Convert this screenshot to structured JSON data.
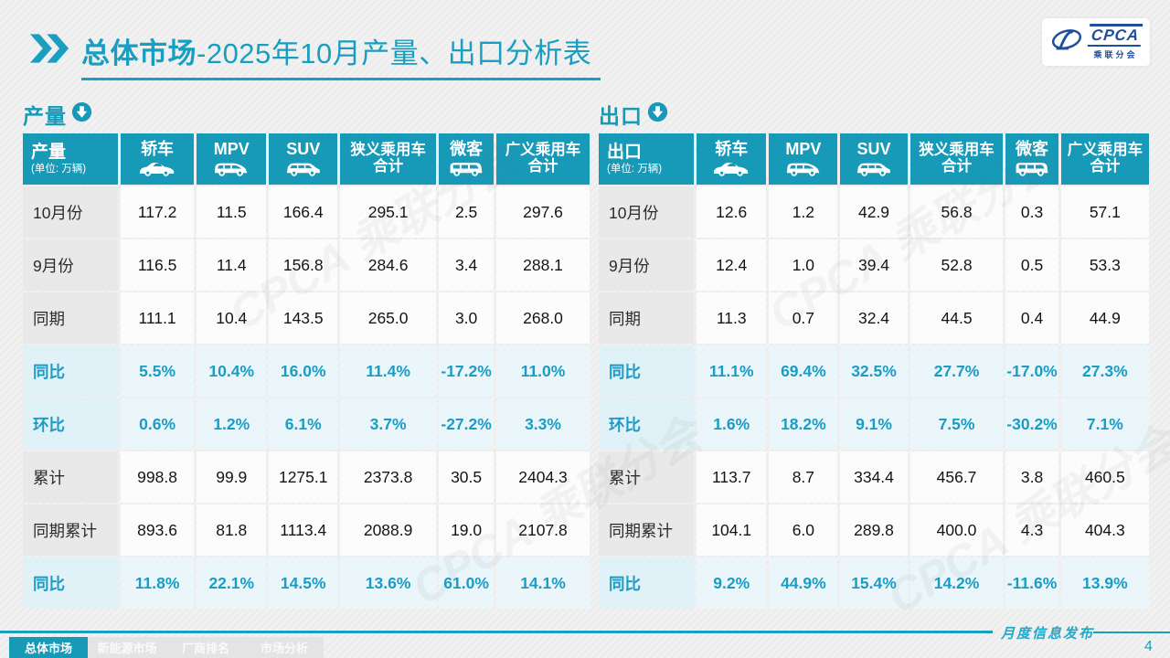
{
  "title": {
    "bold": "总体市场",
    "rest": "-2025年10月产量、出口分析表"
  },
  "logo": {
    "name": "CPCA",
    "caption": "乘联分会",
    "brand_color": "#1F4E9C"
  },
  "accent_color": "#1799B8",
  "watermark": "CPCA 乘联分会",
  "columns": [
    {
      "label": "轿车",
      "icon": "sedan-icon"
    },
    {
      "label": "MPV",
      "icon": "mpv-icon"
    },
    {
      "label": "SUV",
      "icon": "suv-icon"
    },
    {
      "label": "狭义乘用车合计",
      "lines": [
        "狭义乘用车",
        "合计"
      ]
    },
    {
      "label": "微客",
      "icon": "microvan-icon"
    },
    {
      "label": "广义乘用车合计",
      "lines": [
        "广义乘用车",
        "合计"
      ]
    }
  ],
  "tables": [
    {
      "id": "production",
      "section_label": "产量",
      "header_label": "产量",
      "unit": "(单位: 万辆)",
      "rows": [
        {
          "label": "10月份",
          "type": "normal",
          "values": [
            "117.2",
            "11.5",
            "166.4",
            "295.1",
            "2.5",
            "297.6"
          ]
        },
        {
          "label": "9月份",
          "type": "normal",
          "values": [
            "116.5",
            "11.4",
            "156.8",
            "284.6",
            "3.4",
            "288.1"
          ]
        },
        {
          "label": "同期",
          "type": "normal",
          "values": [
            "111.1",
            "10.4",
            "143.5",
            "265.0",
            "3.0",
            "268.0"
          ]
        },
        {
          "label": "同比",
          "type": "percent",
          "values": [
            "5.5%",
            "10.4%",
            "16.0%",
            "11.4%",
            "-17.2%",
            "11.0%"
          ]
        },
        {
          "label": "环比",
          "type": "percent",
          "values": [
            "0.6%",
            "1.2%",
            "6.1%",
            "3.7%",
            "-27.2%",
            "3.3%"
          ]
        },
        {
          "label": "累计",
          "type": "normal",
          "values": [
            "998.8",
            "99.9",
            "1275.1",
            "2373.8",
            "30.5",
            "2404.3"
          ]
        },
        {
          "label": "同期累计",
          "type": "normal",
          "values": [
            "893.6",
            "81.8",
            "1113.4",
            "2088.9",
            "19.0",
            "2107.8"
          ]
        },
        {
          "label": "同比",
          "type": "percent",
          "values": [
            "11.8%",
            "22.1%",
            "14.5%",
            "13.6%",
            "61.0%",
            "14.1%"
          ]
        }
      ]
    },
    {
      "id": "export",
      "section_label": "出口",
      "header_label": "出口",
      "unit": "(单位: 万辆)",
      "rows": [
        {
          "label": "10月份",
          "type": "normal",
          "values": [
            "12.6",
            "1.2",
            "42.9",
            "56.8",
            "0.3",
            "57.1"
          ]
        },
        {
          "label": "9月份",
          "type": "normal",
          "values": [
            "12.4",
            "1.0",
            "39.4",
            "52.8",
            "0.5",
            "53.3"
          ]
        },
        {
          "label": "同期",
          "type": "normal",
          "values": [
            "11.3",
            "0.7",
            "32.4",
            "44.5",
            "0.4",
            "44.9"
          ]
        },
        {
          "label": "同比",
          "type": "percent",
          "values": [
            "11.1%",
            "69.4%",
            "32.5%",
            "27.7%",
            "-17.0%",
            "27.3%"
          ]
        },
        {
          "label": "环比",
          "type": "percent",
          "values": [
            "1.6%",
            "18.2%",
            "9.1%",
            "7.5%",
            "-30.2%",
            "7.1%"
          ]
        },
        {
          "label": "累计",
          "type": "normal",
          "values": [
            "113.7",
            "8.7",
            "334.4",
            "456.7",
            "3.8",
            "460.5"
          ]
        },
        {
          "label": "同期累计",
          "type": "normal",
          "values": [
            "104.1",
            "6.0",
            "289.8",
            "400.0",
            "4.3",
            "404.3"
          ]
        },
        {
          "label": "同比",
          "type": "percent",
          "values": [
            "9.2%",
            "44.9%",
            "15.4%",
            "14.2%",
            "-11.6%",
            "13.9%"
          ]
        }
      ]
    }
  ],
  "footer": {
    "tabs": [
      {
        "label": "总体市场",
        "active": true
      },
      {
        "label": "新能源市场",
        "active": false
      },
      {
        "label": "厂商排名",
        "active": false
      },
      {
        "label": "市场分析",
        "active": false
      }
    ],
    "release_label": "月度信息发布",
    "page_number": "4"
  }
}
